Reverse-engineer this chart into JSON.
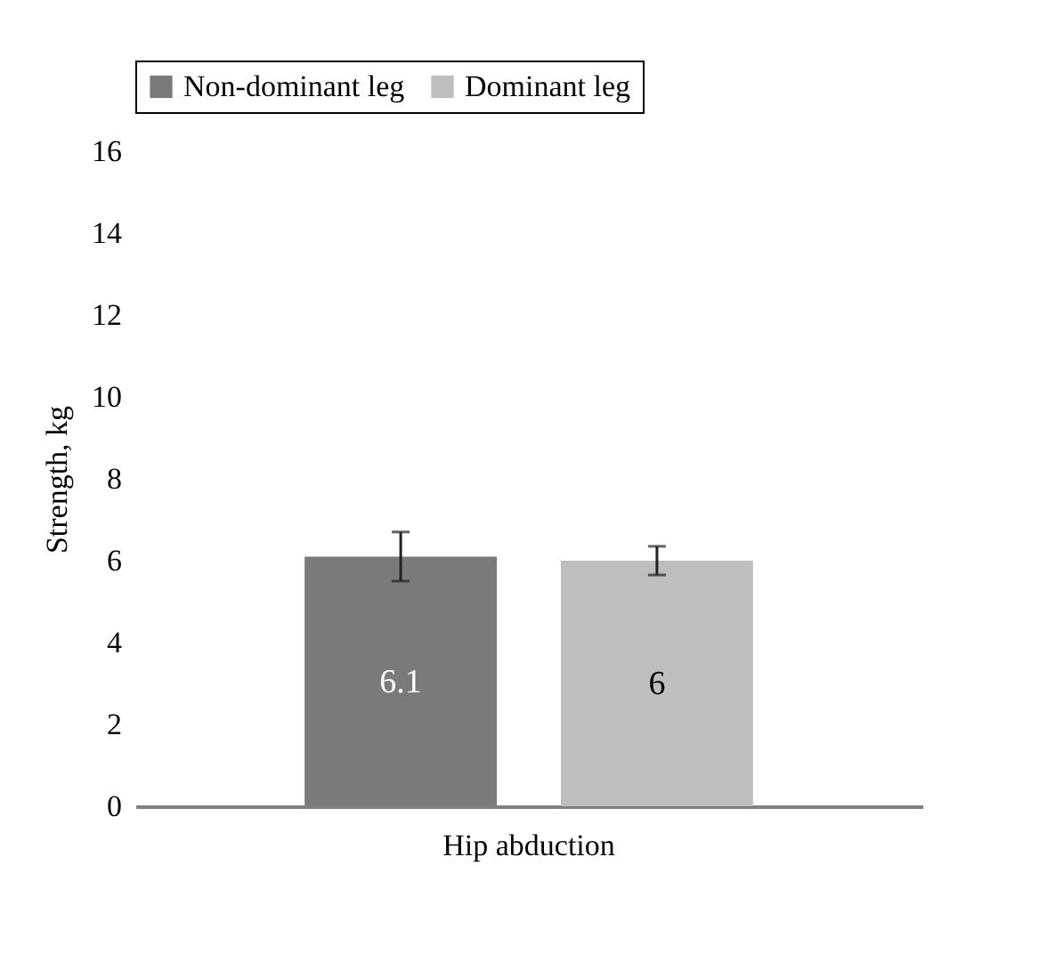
{
  "chart_data": {
    "type": "bar",
    "categories": [
      "Hip abduction"
    ],
    "ylabel": "Strength, kg",
    "ylim": [
      0,
      16
    ],
    "yticks": [
      0,
      2,
      4,
      6,
      8,
      10,
      12,
      14,
      16
    ],
    "grid": false,
    "legend": "top",
    "data_labels": true,
    "series": [
      {
        "name": "Non-dominant leg",
        "color": "#7a7a7c",
        "values": [
          6.1
        ],
        "errors": [
          0.6
        ]
      },
      {
        "name": "Dominant leg",
        "color": "#bdbec0",
        "values": [
          6
        ],
        "errors": [
          0.35
        ]
      }
    ]
  }
}
